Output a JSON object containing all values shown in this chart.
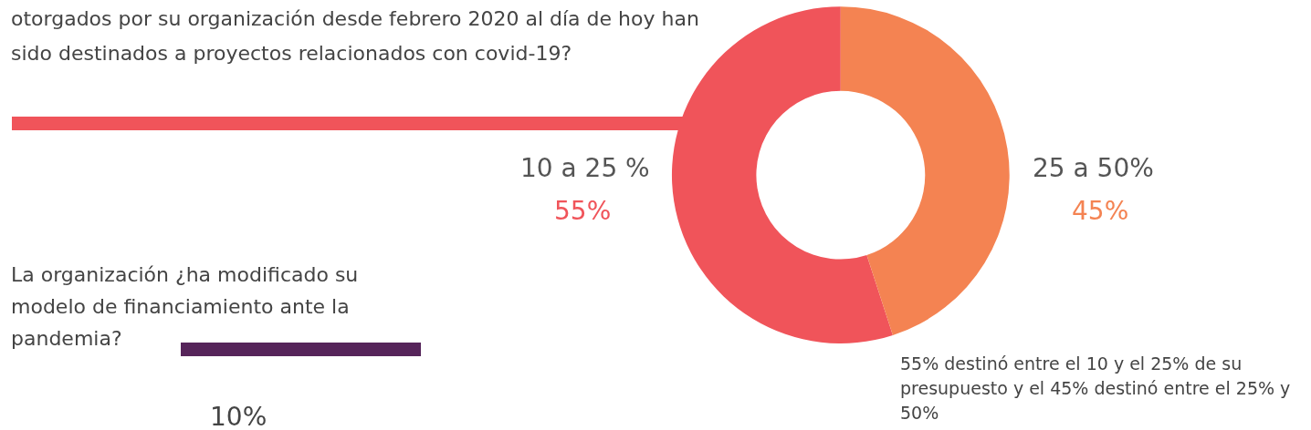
{
  "chart_data": {
    "type": "donut",
    "title": "otorgados por su organización desde febrero 2020 al día de hoy han sido destinados a proyectos relacionados con covid-19?",
    "categories": [
      "10 a 25 %",
      "25 a 50%"
    ],
    "values": [
      55,
      45
    ],
    "colors": [
      "#f0545a",
      "#f48352"
    ],
    "value_labels": [
      "55%",
      "45%"
    ],
    "legend": false,
    "annotations": [
      "55% destinó entre el 10 y el 25% de su presupuesto y el 45% destinó entre el 25% y 50%",
      "La organización ¿ha modificado su modelo de financiamiento ante la pandemia?",
      "10%"
    ]
  }
}
